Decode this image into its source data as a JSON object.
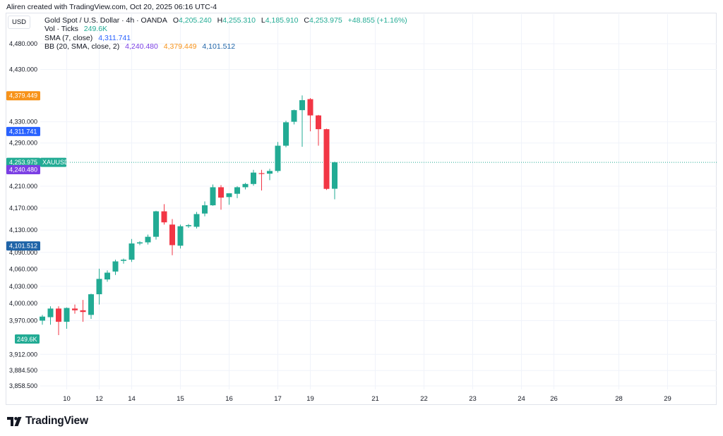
{
  "header": {
    "credit": "Aliren created with TradingView.com, Oct 20, 2025 06:16 UTC-4"
  },
  "toolbar": {
    "currency": "USD"
  },
  "legend": {
    "symbol_line": {
      "name": "Gold Spot / U.S. Dollar · 4h · OANDA",
      "open_label": "O",
      "open": "4,205.240",
      "high_label": "H",
      "high": "4,255.310",
      "low_label": "L",
      "low": "4,185.910",
      "close_label": "C",
      "close": "4,253.975",
      "change": "+48.855 (+1.16%)"
    },
    "volume": {
      "label": "Vol · Ticks",
      "value": "249.6K"
    },
    "sma": {
      "label": "SMA (7, close)",
      "value": "4,311.741"
    },
    "bb": {
      "label": "BB (20, SMA, close, 2)",
      "basis": "4,240.480",
      "upper": "4,379.449",
      "lower": "4,101.512"
    }
  },
  "price_tags": {
    "bb_upper": "4,379.449",
    "sma": "4,311.741",
    "last_price": "4,253.975",
    "symbol": "XAUUSD",
    "bb_basis": "4,240.480",
    "bb_lower": "4,101.512",
    "volume": "249.6K"
  },
  "colors": {
    "up": "#22ab94",
    "down": "#f23645",
    "bb_upper": "#f7931a",
    "sma": "#2962ff",
    "bb_basis": "#7b3fe4",
    "bb_lower": "#1f64a8"
  },
  "footer": {
    "brand": "TradingView"
  },
  "chart_data": {
    "type": "candlestick",
    "title": "Gold Spot / U.S. Dollar · 4h · OANDA",
    "y_scale": "log",
    "y_range": [
      3858.5,
      4480.0
    ],
    "y_ticks": [
      {
        "value": 4480.0,
        "label": "4,480.000"
      },
      {
        "value": 4430.0,
        "label": "4,430.000"
      },
      {
        "value": 4330.0,
        "label": "4,330.000"
      },
      {
        "value": 4290.0,
        "label": "4,290.000"
      },
      {
        "value": 4210.0,
        "label": "4,210.000"
      },
      {
        "value": 4170.0,
        "label": "4,170.000"
      },
      {
        "value": 4130.0,
        "label": "4,130.000"
      },
      {
        "value": 4090.0,
        "label": "4,090.000"
      },
      {
        "value": 4060.0,
        "label": "4,060.000"
      },
      {
        "value": 4030.0,
        "label": "4,030.000"
      },
      {
        "value": 4000.0,
        "label": "4,000.000"
      },
      {
        "value": 3970.0,
        "label": "3,970.000"
      },
      {
        "value": 3912.0,
        "label": "3,912.000"
      },
      {
        "value": 3884.5,
        "label": "3,884.500"
      },
      {
        "value": 3858.5,
        "label": "3,858.500"
      }
    ],
    "x_ticks": [
      {
        "bar": 3,
        "label": "10"
      },
      {
        "bar": 7,
        "label": "12"
      },
      {
        "bar": 11,
        "label": "14"
      },
      {
        "bar": 17,
        "label": "15"
      },
      {
        "bar": 23,
        "label": "16"
      },
      {
        "bar": 29,
        "label": "17"
      },
      {
        "bar": 33,
        "label": "19"
      },
      {
        "bar": 41,
        "label": "21"
      },
      {
        "bar": 47,
        "label": "22"
      },
      {
        "bar": 53,
        "label": "23"
      },
      {
        "bar": 59,
        "label": "24"
      },
      {
        "bar": 63,
        "label": "26"
      },
      {
        "bar": 71,
        "label": "28"
      },
      {
        "bar": 77,
        "label": "29"
      }
    ],
    "candles": [
      {
        "o": 3970,
        "h": 3980,
        "l": 3963,
        "c": 3977
      },
      {
        "o": 3976,
        "h": 3995,
        "l": 3963,
        "c": 3991
      },
      {
        "o": 3991,
        "h": 3995,
        "l": 3945,
        "c": 3968
      },
      {
        "o": 3968,
        "h": 3993,
        "l": 3956,
        "c": 3992
      },
      {
        "o": 3991,
        "h": 3998,
        "l": 3982,
        "c": 3988
      },
      {
        "o": 3988,
        "h": 4006,
        "l": 3968,
        "c": 3985
      },
      {
        "o": 3980,
        "h": 4017,
        "l": 3973,
        "c": 4016
      },
      {
        "o": 4016,
        "h": 4061,
        "l": 3998,
        "c": 4043
      },
      {
        "o": 4042,
        "h": 4058,
        "l": 4038,
        "c": 4054
      },
      {
        "o": 4056,
        "h": 4077,
        "l": 4050,
        "c": 4074
      },
      {
        "o": 4075,
        "h": 4079,
        "l": 4070,
        "c": 4077
      },
      {
        "o": 4077,
        "h": 4114,
        "l": 4073,
        "c": 4106
      },
      {
        "o": 4106,
        "h": 4110,
        "l": 4103,
        "c": 4108
      },
      {
        "o": 4108,
        "h": 4122,
        "l": 4104,
        "c": 4118
      },
      {
        "o": 4118,
        "h": 4165,
        "l": 4113,
        "c": 4164
      },
      {
        "o": 4164,
        "h": 4177,
        "l": 4140,
        "c": 4144
      },
      {
        "o": 4140,
        "h": 4150,
        "l": 4085,
        "c": 4103
      },
      {
        "o": 4102,
        "h": 4140,
        "l": 4097,
        "c": 4137
      },
      {
        "o": 4137,
        "h": 4141,
        "l": 4134,
        "c": 4139
      },
      {
        "o": 4136,
        "h": 4163,
        "l": 4133,
        "c": 4159
      },
      {
        "o": 4160,
        "h": 4182,
        "l": 4155,
        "c": 4175
      },
      {
        "o": 4175,
        "h": 4213,
        "l": 4174,
        "c": 4208
      },
      {
        "o": 4208,
        "h": 4212,
        "l": 4167,
        "c": 4189
      },
      {
        "o": 4190,
        "h": 4197,
        "l": 4176,
        "c": 4197
      },
      {
        "o": 4196,
        "h": 4210,
        "l": 4188,
        "c": 4208
      },
      {
        "o": 4208,
        "h": 4216,
        "l": 4204,
        "c": 4214
      },
      {
        "o": 4214,
        "h": 4240,
        "l": 4211,
        "c": 4235
      },
      {
        "o": 4234,
        "h": 4240,
        "l": 4202,
        "c": 4233
      },
      {
        "o": 4233,
        "h": 4242,
        "l": 4221,
        "c": 4238
      },
      {
        "o": 4238,
        "h": 4292,
        "l": 4235,
        "c": 4285
      },
      {
        "o": 4285,
        "h": 4332,
        "l": 4282,
        "c": 4329
      },
      {
        "o": 4330,
        "h": 4353,
        "l": 4325,
        "c": 4352
      },
      {
        "o": 4352,
        "h": 4380,
        "l": 4283,
        "c": 4371
      },
      {
        "o": 4373,
        "h": 4375,
        "l": 4312,
        "c": 4342
      },
      {
        "o": 4342,
        "h": 4343,
        "l": 4285,
        "c": 4316
      },
      {
        "o": 4316,
        "h": 4317,
        "l": 4203,
        "c": 4205
      },
      {
        "o": 4205.24,
        "h": 4255.31,
        "l": 4185.91,
        "c": 4253.975
      }
    ],
    "horizontal_lines": [
      {
        "name": "last-price",
        "value": 4253.975
      }
    ]
  }
}
